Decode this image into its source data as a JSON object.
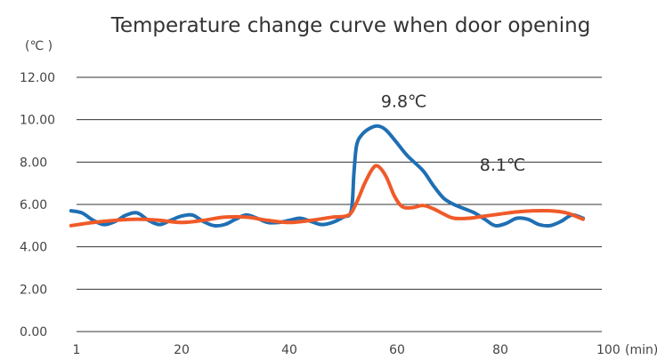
{
  "chart_data": {
    "type": "line",
    "title": "Temperature change curve when door opening",
    "ylabel": "(℃ )",
    "xlabel": "(min)",
    "ylim": [
      0,
      12
    ],
    "xlim": [
      1,
      100
    ],
    "grid": true,
    "y_ticks": [
      "12.00",
      "10.00",
      "8.00",
      "6.00",
      "4.00",
      "2.00",
      "0.00"
    ],
    "y_tick_values": [
      12,
      10,
      8,
      6,
      4,
      2,
      0
    ],
    "x_ticks": [
      "1",
      "20",
      "40",
      "60",
      "80",
      "100"
    ],
    "x_tick_values": [
      1,
      20,
      40,
      60,
      80,
      100
    ],
    "colors": {
      "blue": "#1f6fb4",
      "orange": "#f05a28"
    },
    "series": [
      {
        "color": "#1f6fb4",
        "points": [
          [
            0,
            5.7
          ],
          [
            2,
            5.6
          ],
          [
            4,
            5.25
          ],
          [
            6,
            5.05
          ],
          [
            8,
            5.2
          ],
          [
            10,
            5.5
          ],
          [
            12,
            5.6
          ],
          [
            14,
            5.25
          ],
          [
            16,
            5.05
          ],
          [
            18,
            5.25
          ],
          [
            20,
            5.45
          ],
          [
            22,
            5.5
          ],
          [
            24,
            5.2
          ],
          [
            26,
            5.0
          ],
          [
            28,
            5.05
          ],
          [
            30,
            5.3
          ],
          [
            32,
            5.5
          ],
          [
            34,
            5.35
          ],
          [
            36,
            5.15
          ],
          [
            38,
            5.15
          ],
          [
            40,
            5.25
          ],
          [
            42,
            5.35
          ],
          [
            44,
            5.2
          ],
          [
            46,
            5.05
          ],
          [
            48,
            5.15
          ],
          [
            50,
            5.4
          ],
          [
            51.5,
            5.7
          ],
          [
            52,
            7.5
          ],
          [
            52.5,
            8.8
          ],
          [
            53.5,
            9.3
          ],
          [
            55,
            9.6
          ],
          [
            56.5,
            9.7
          ],
          [
            58,
            9.5
          ],
          [
            60,
            8.9
          ],
          [
            62,
            8.3
          ],
          [
            65,
            7.6
          ],
          [
            67,
            6.9
          ],
          [
            69,
            6.3
          ],
          [
            71,
            6.0
          ],
          [
            73,
            5.8
          ],
          [
            75,
            5.6
          ],
          [
            77,
            5.3
          ],
          [
            79,
            5.0
          ],
          [
            81,
            5.1
          ],
          [
            83,
            5.35
          ],
          [
            85,
            5.3
          ],
          [
            87,
            5.05
          ],
          [
            89,
            5.0
          ],
          [
            91,
            5.2
          ],
          [
            93,
            5.5
          ],
          [
            95,
            5.35
          ]
        ]
      },
      {
        "color": "#f05a28",
        "points": [
          [
            0,
            5.0
          ],
          [
            4,
            5.15
          ],
          [
            8,
            5.25
          ],
          [
            12,
            5.3
          ],
          [
            16,
            5.25
          ],
          [
            20,
            5.15
          ],
          [
            24,
            5.25
          ],
          [
            28,
            5.4
          ],
          [
            32,
            5.4
          ],
          [
            36,
            5.25
          ],
          [
            40,
            5.15
          ],
          [
            44,
            5.25
          ],
          [
            48,
            5.4
          ],
          [
            51,
            5.5
          ],
          [
            52.5,
            6.1
          ],
          [
            54,
            7.0
          ],
          [
            55.5,
            7.7
          ],
          [
            56.5,
            7.8
          ],
          [
            58,
            7.3
          ],
          [
            59.5,
            6.4
          ],
          [
            61,
            5.9
          ],
          [
            63,
            5.85
          ],
          [
            65,
            5.95
          ],
          [
            67,
            5.8
          ],
          [
            69,
            5.55
          ],
          [
            71,
            5.35
          ],
          [
            74,
            5.35
          ],
          [
            77,
            5.45
          ],
          [
            80,
            5.55
          ],
          [
            83,
            5.65
          ],
          [
            86,
            5.7
          ],
          [
            89,
            5.7
          ],
          [
            92,
            5.6
          ],
          [
            95,
            5.3
          ]
        ]
      }
    ],
    "annotations": [
      {
        "text": "9.8℃",
        "x": 57,
        "y": 10.6
      },
      {
        "text": "8.1℃",
        "x": 76,
        "y": 7.6
      }
    ]
  }
}
